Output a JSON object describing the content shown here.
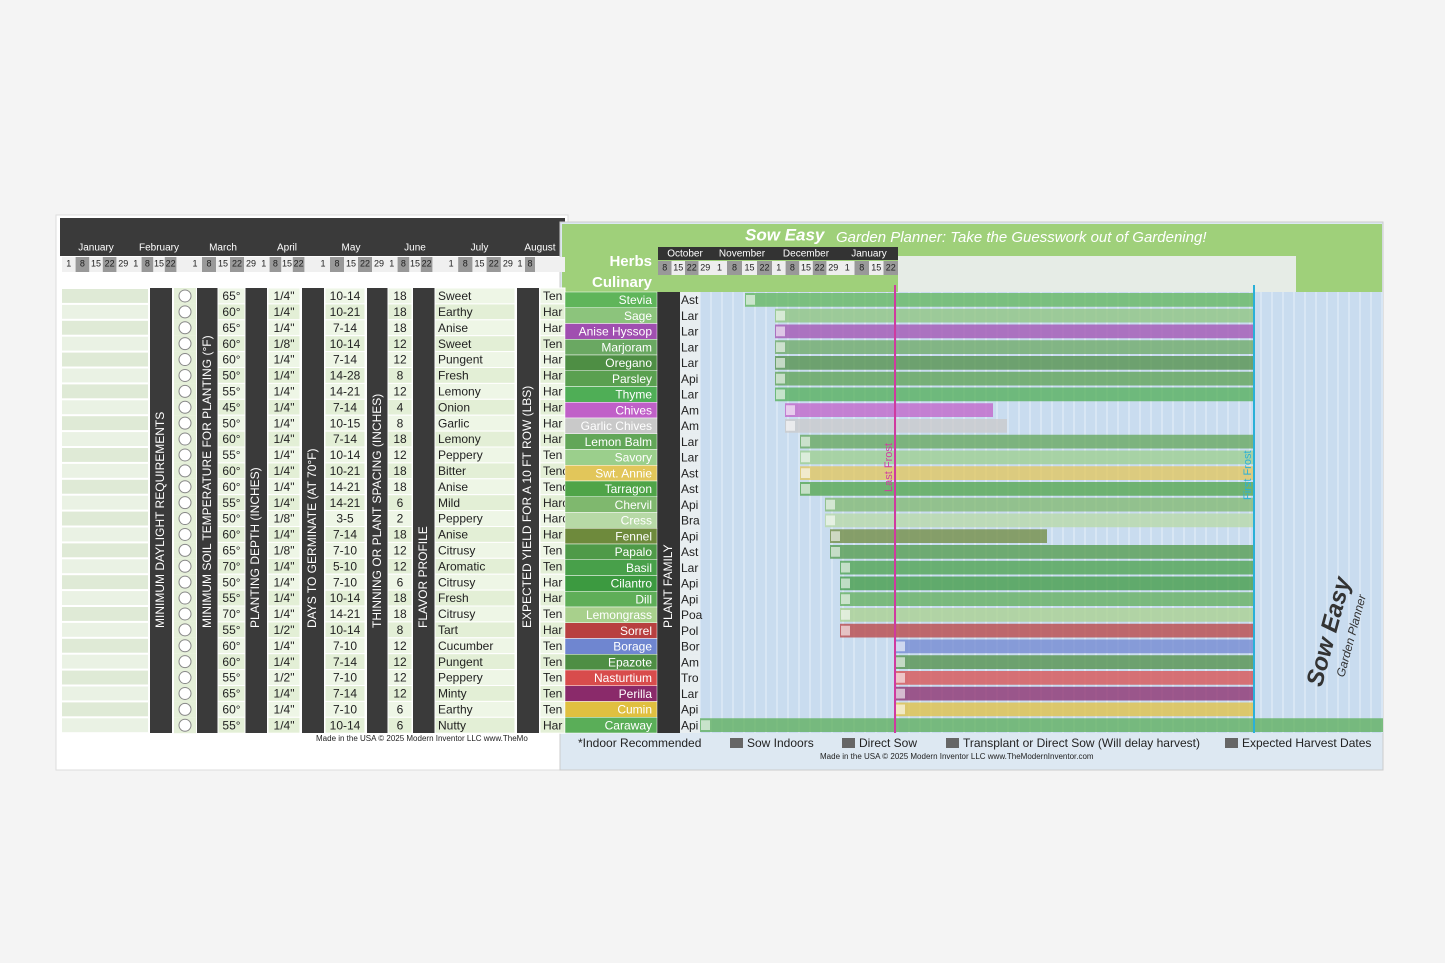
{
  "left": {
    "months": [
      {
        "name": "January",
        "days": [
          "1",
          "8",
          "15",
          "22",
          "29"
        ]
      },
      {
        "name": "February",
        "days": [
          "1",
          "8",
          "15",
          "22"
        ]
      },
      {
        "name": "March",
        "days": [
          "1",
          "8",
          "15",
          "22",
          "29"
        ]
      },
      {
        "name": "April",
        "days": [
          "1",
          "8",
          "15",
          "22"
        ]
      },
      {
        "name": "May",
        "days": [
          "1",
          "8",
          "15",
          "22",
          "29"
        ]
      },
      {
        "name": "June",
        "days": [
          "1",
          "8",
          "15",
          "22"
        ]
      },
      {
        "name": "July",
        "days": [
          "1",
          "8",
          "15",
          "22",
          "29"
        ]
      },
      {
        "name": "August",
        "days": [
          "1",
          "8"
        ]
      }
    ],
    "headers": [
      "MINIMUM DAYLIGHT REQUIREMENTS",
      "MINIMUM SOIL TEMPERATURE FOR PLANTING (°F)",
      "PLANTING DEPTH (INCHES)",
      "DAYS TO GERMINATE (AT 70°F)",
      "THINNING OR PLANT SPACING (INCHES)",
      "FLAVOR PROFILE",
      "EXPECTED YIELD FOR A 10 FT ROW (LBS)"
    ],
    "rows": [
      [
        "65°",
        "1/4\"",
        "10-14",
        "18",
        "Sweet",
        "Ten"
      ],
      [
        "60°",
        "1/4\"",
        "10-21",
        "18",
        "Earthy",
        "Har"
      ],
      [
        "65°",
        "1/4\"",
        "7-14",
        "18",
        "Anise",
        "Har"
      ],
      [
        "60°",
        "1/8\"",
        "10-14",
        "12",
        "Sweet",
        "Ten"
      ],
      [
        "60°",
        "1/4\"",
        "7-14",
        "12",
        "Pungent",
        "Har"
      ],
      [
        "50°",
        "1/4\"",
        "14-28",
        "8",
        "Fresh",
        "Har"
      ],
      [
        "55°",
        "1/4\"",
        "14-21",
        "12",
        "Lemony",
        "Har"
      ],
      [
        "45°",
        "1/4\"",
        "7-14",
        "4",
        "Onion",
        "Har"
      ],
      [
        "50°",
        "1/4\"",
        "10-15",
        "8",
        "Garlic",
        "Har"
      ],
      [
        "60°",
        "1/4\"",
        "7-14",
        "18",
        "Lemony",
        "Har"
      ],
      [
        "55°",
        "1/4\"",
        "10-14",
        "12",
        "Peppery",
        "Ten"
      ],
      [
        "60°",
        "1/4\"",
        "10-21",
        "18",
        "Bitter",
        "Tender"
      ],
      [
        "60°",
        "1/4\"",
        "14-21",
        "18",
        "Anise",
        "Tender"
      ],
      [
        "55°",
        "1/4\"",
        "14-21",
        "6",
        "Mild",
        "Hardy F"
      ],
      [
        "50°",
        "1/8\"",
        "3-5",
        "2",
        "Peppery",
        "Hardy"
      ],
      [
        "60°",
        "1/4\"",
        "7-14",
        "18",
        "Anise",
        "Har"
      ],
      [
        "65°",
        "1/8\"",
        "7-10",
        "12",
        "Citrusy",
        "Ten"
      ],
      [
        "70°",
        "1/4\"",
        "5-10",
        "12",
        "Aromatic",
        "Ten"
      ],
      [
        "50°",
        "1/4\"",
        "7-10",
        "6",
        "Citrusy",
        "Har"
      ],
      [
        "55°",
        "1/4\"",
        "10-14",
        "18",
        "Fresh",
        "Har"
      ],
      [
        "70°",
        "1/4\"",
        "14-21",
        "18",
        "Citrusy",
        "Ten"
      ],
      [
        "55°",
        "1/2\"",
        "10-14",
        "8",
        "Tart",
        "Har"
      ],
      [
        "60°",
        "1/4\"",
        "7-10",
        "12",
        "Cucumber",
        "Ten"
      ],
      [
        "60°",
        "1/4\"",
        "7-14",
        "12",
        "Pungent",
        "Ten"
      ],
      [
        "55°",
        "1/2\"",
        "7-10",
        "12",
        "Peppery",
        "Ten"
      ],
      [
        "65°",
        "1/4\"",
        "7-14",
        "12",
        "Minty",
        "Ten"
      ],
      [
        "60°",
        "1/4\"",
        "7-10",
        "6",
        "Earthy",
        "Ten"
      ],
      [
        "55°",
        "1/4\"",
        "10-14",
        "6",
        "Nutty",
        "Har"
      ]
    ],
    "footer": "Made in the USA © 2025 Modern Inventor LLC  www.TheMo"
  },
  "right": {
    "brand": "Sow Easy",
    "title": "Garden Planner: Take the Guesswork out of Gardening!",
    "section": "Herbs",
    "subsection": "Culinary",
    "family_header": "PLANT FAMILY",
    "months": [
      {
        "name": "October",
        "days": [
          "8",
          "15",
          "22",
          "29"
        ]
      },
      {
        "name": "November",
        "days": [
          "1",
          "8",
          "15",
          "22"
        ]
      },
      {
        "name": "December",
        "days": [
          "1",
          "8",
          "15",
          "22",
          "29"
        ]
      },
      {
        "name": "January",
        "days": [
          "1",
          "8",
          "15",
          "22"
        ]
      }
    ],
    "herbs": [
      {
        "name": "Stevia",
        "family": "Ast",
        "color": "#5fb55a"
      },
      {
        "name": "Sage",
        "family": "Lar",
        "color": "#8cc47c"
      },
      {
        "name": "Anise Hyssop",
        "family": "Lar",
        "color": "#a04fb0"
      },
      {
        "name": "Marjoram",
        "family": "Lar",
        "color": "#6aa862"
      },
      {
        "name": "Oregano",
        "family": "Lar",
        "color": "#4e8e44"
      },
      {
        "name": "Parsley",
        "family": "Api",
        "color": "#5aa050"
      },
      {
        "name": "Thyme",
        "family": "Lar",
        "color": "#4fae56"
      },
      {
        "name": "Chives",
        "family": "Am",
        "color": "#c060c8"
      },
      {
        "name": "Garlic Chives",
        "family": "Am",
        "color": "#c9c9c9"
      },
      {
        "name": "Lemon Balm",
        "family": "Lar",
        "color": "#62a658"
      },
      {
        "name": "Savory",
        "family": "Lar",
        "color": "#9bcf8c"
      },
      {
        "name": "Swt. Annie",
        "family": "Ast",
        "color": "#e2c65a"
      },
      {
        "name": "Tarragon",
        "family": "Ast",
        "color": "#4fa448"
      },
      {
        "name": "Chervil",
        "family": "Api",
        "color": "#7fb86e"
      },
      {
        "name": "Cress",
        "family": "Bra",
        "color": "#b7d9a6"
      },
      {
        "name": "Fennel",
        "family": "Api",
        "color": "#6e8a3c"
      },
      {
        "name": "Papalo",
        "family": "Ast",
        "color": "#4f9a48"
      },
      {
        "name": "Basil",
        "family": "Lar",
        "color": "#48a04a"
      },
      {
        "name": "Cilantro",
        "family": "Api",
        "color": "#3c9a40"
      },
      {
        "name": "Dill",
        "family": "Api",
        "color": "#5fae58"
      },
      {
        "name": "Lemongrass",
        "family": "Poa",
        "color": "#a8d08c"
      },
      {
        "name": "Sorrel",
        "family": "Pol",
        "color": "#b84040"
      },
      {
        "name": "Borage",
        "family": "Bor",
        "color": "#6f86d0"
      },
      {
        "name": "Epazote",
        "family": "Am",
        "color": "#4e8e44"
      },
      {
        "name": "Nasturtium",
        "family": "Tro",
        "color": "#d84c4c"
      },
      {
        "name": "Perilla",
        "family": "Lar",
        "color": "#8a2a6a"
      },
      {
        "name": "Cumin",
        "family": "Api",
        "color": "#e0c040"
      },
      {
        "name": "Caraway",
        "family": "Api",
        "color": "#5aae58"
      }
    ],
    "last_frost": "Last Frost",
    "first_frost": "First Frost",
    "legend": [
      "*Indoor Recommended",
      "Sow Indoors",
      "Direct Sow",
      "Transplant or Direct Sow (Will delay harvest)",
      "Expected Harvest Dates"
    ],
    "footer": "Made in the USA © 2025 Modern Inventor LLC  www.TheModernInventor.com",
    "logo": "Sow Easy",
    "logo_sub": "Garden Planner"
  }
}
